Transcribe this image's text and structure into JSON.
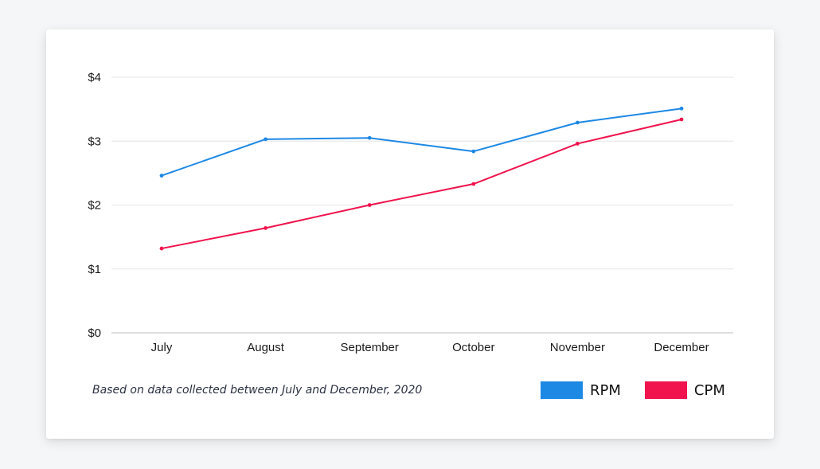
{
  "chart_data": {
    "type": "line",
    "categories": [
      "July",
      "August",
      "September",
      "October",
      "November",
      "December"
    ],
    "series": [
      {
        "name": "RPM",
        "values": [
          2.46,
          3.03,
          3.05,
          2.84,
          3.29,
          3.51
        ],
        "color": "#1e88e5"
      },
      {
        "name": "CPM",
        "values": [
          1.32,
          1.64,
          2.0,
          2.33,
          2.96,
          3.34
        ],
        "color": "#f0134d"
      }
    ],
    "ylim": [
      0,
      4
    ],
    "yticks": [
      0,
      1,
      2,
      3,
      4
    ],
    "ytick_labels": [
      "$0",
      "$1",
      "$2",
      "$3",
      "$4"
    ],
    "grid": true,
    "legend_position": "bottom-right",
    "note": "Based on data collected between July and December, 2020"
  }
}
